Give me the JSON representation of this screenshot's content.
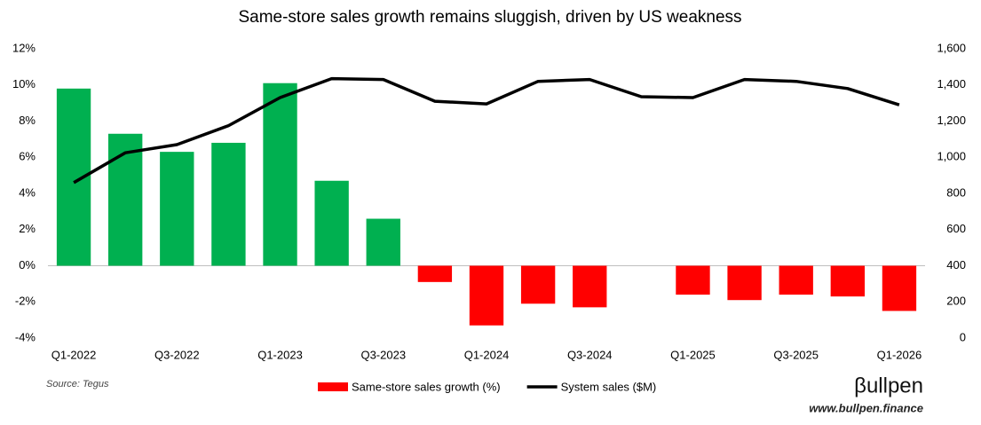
{
  "chart_data": {
    "type": "bar-line",
    "title": "Same-store sales growth remains sluggish, driven by US weakness",
    "categories": [
      "Q1-2022",
      null,
      "Q3-2022",
      null,
      "Q1-2023",
      null,
      "Q3-2023",
      null,
      "Q1-2024",
      null,
      "Q3-2024",
      null,
      "Q1-2025",
      null,
      "Q3-2025",
      null,
      "Q1-2026"
    ],
    "series": [
      {
        "name": "Same-store sales growth (%)",
        "type": "bar",
        "color": "#ff0000",
        "positive_color": "#00b050",
        "values": [
          9.8,
          7.3,
          6.3,
          6.8,
          10.1,
          4.7,
          2.6,
          -0.9,
          -3.3,
          -2.1,
          -2.3,
          null,
          -1.6,
          -1.9,
          -1.6,
          -1.7,
          -2.5
        ]
      },
      {
        "name": "System sales ($M)",
        "type": "line",
        "color": "#000000",
        "axis": "y2",
        "values": [
          860,
          1025,
          1070,
          1175,
          1330,
          1435,
          1430,
          1310,
          1295,
          1420,
          1430,
          1335,
          1330,
          1430,
          1420,
          1380,
          1290
        ]
      }
    ],
    "ylim": [
      -4,
      12
    ],
    "yticks": [
      {
        "value": -4,
        "label": "-4%"
      },
      {
        "value": -2,
        "label": "-2%"
      },
      {
        "value": 0,
        "label": "0%"
      },
      {
        "value": 2,
        "label": "2%"
      },
      {
        "value": 4,
        "label": "4%"
      },
      {
        "value": 6,
        "label": "6%"
      },
      {
        "value": 8,
        "label": "8%"
      },
      {
        "value": 10,
        "label": "10%"
      },
      {
        "value": 12,
        "label": "12%"
      }
    ],
    "y2lim": [
      0,
      1600
    ],
    "y2ticks": [
      0,
      200,
      400,
      600,
      800,
      {
        "value": 1000,
        "label": "1,000"
      },
      {
        "value": 1200,
        "label": "1,200"
      },
      {
        "value": 1400,
        "label": "1,400"
      },
      {
        "value": 1600,
        "label": "1,600"
      }
    ],
    "grid": false,
    "source": "Source: Tegus",
    "logo": "βullpen",
    "website": "www.bullpen.finance"
  }
}
